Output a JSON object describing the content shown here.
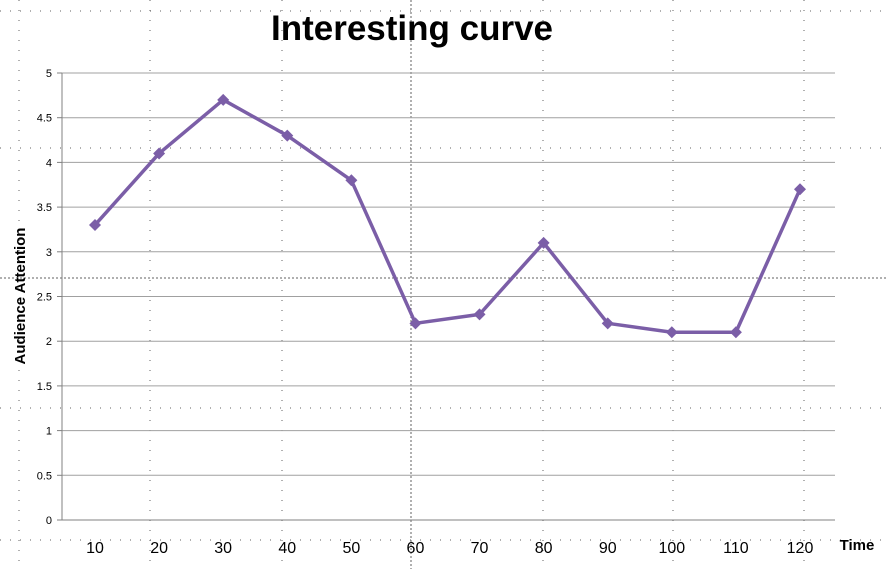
{
  "chart_data": {
    "type": "line",
    "title": "Interesting curve",
    "xlabel": "Time",
    "ylabel": "Audience Attention",
    "x": [
      10,
      20,
      30,
      40,
      50,
      60,
      70,
      80,
      90,
      100,
      110,
      120
    ],
    "series": [
      {
        "values": [
          3.3,
          4.1,
          4.7,
          4.3,
          3.8,
          2.2,
          2.3,
          3.1,
          2.2,
          2.1,
          2.1,
          3.7
        ]
      }
    ],
    "ylim": [
      0,
      5
    ],
    "yticks": [
      "0",
      "0.5",
      "1",
      "1.5",
      "2",
      "2.5",
      "3",
      "3.5",
      "4",
      "4.5",
      "5"
    ],
    "xticks": [
      "10",
      "20",
      "30",
      "40",
      "50",
      "60",
      "70",
      "80",
      "90",
      "100",
      "110",
      "120"
    ],
    "grid": true,
    "legend": false,
    "colors": {
      "line": "#7b5ea7",
      "marker": "#7b5ea7",
      "grid": "#a0a0a0"
    }
  }
}
